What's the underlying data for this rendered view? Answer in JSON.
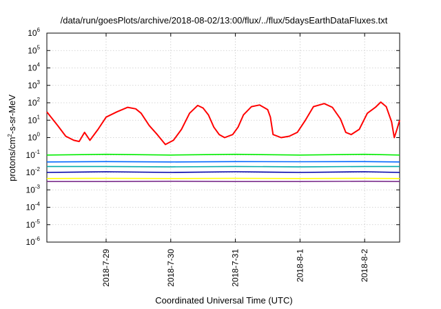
{
  "chart_data": {
    "type": "line",
    "title": "/data/run/goesPlots/archive/2018-08-02/13:00/flux/../flux/5daysEarthDataFluxes.txt",
    "xlabel": "Coordinated Universal Time (UTC)",
    "ylabel_parts": {
      "base": "protons/cm",
      "sup": "2",
      "rest": "-s-sr-MeV"
    },
    "yscale": "log",
    "ylim_exp": [
      -6,
      6
    ],
    "y_ticks": [
      {
        "base": "10",
        "exp": "6"
      },
      {
        "base": "10",
        "exp": "5"
      },
      {
        "base": "10",
        "exp": "4"
      },
      {
        "base": "10",
        "exp": "3"
      },
      {
        "base": "10",
        "exp": "2"
      },
      {
        "base": "10",
        "exp": "1"
      },
      {
        "base": "10",
        "exp": "0"
      },
      {
        "base": "10",
        "exp": "-1"
      },
      {
        "base": "10",
        "exp": "-2"
      },
      {
        "base": "10",
        "exp": "-3"
      },
      {
        "base": "10",
        "exp": "-4"
      },
      {
        "base": "10",
        "exp": "-5"
      },
      {
        "base": "10",
        "exp": "-6"
      }
    ],
    "x_range": [
      "2018-07-28T02:00",
      "2018-08-02T13:00"
    ],
    "x_ticks": [
      {
        "label": "2018-7-29",
        "date": "2018-07-29"
      },
      {
        "label": "2018-7-30",
        "date": "2018-07-30"
      },
      {
        "label": "2018-7-31",
        "date": "2018-07-31"
      },
      {
        "label": "2018-8-1",
        "date": "2018-08-01"
      },
      {
        "label": "2018-8-2",
        "date": "2018-08-02"
      }
    ],
    "series": [
      {
        "color": "#7b2d8b",
        "points": [
          [
            "2018-07-28T02:00",
            0.003
          ],
          [
            "2018-07-29T00:00",
            0.003
          ],
          [
            "2018-07-30T00:00",
            0.0031
          ],
          [
            "2018-07-31T00:00",
            0.003
          ],
          [
            "2018-08-01T00:00",
            0.003
          ],
          [
            "2018-08-02T00:00",
            0.0031
          ],
          [
            "2018-08-02T13:00",
            0.003
          ]
        ]
      },
      {
        "color": "#ffff00",
        "points": [
          [
            "2018-07-28T02:00",
            0.0045
          ],
          [
            "2018-07-29T00:00",
            0.0046
          ],
          [
            "2018-07-30T00:00",
            0.0045
          ],
          [
            "2018-07-31T00:00",
            0.0046
          ],
          [
            "2018-08-01T00:00",
            0.0045
          ],
          [
            "2018-08-02T00:00",
            0.0046
          ],
          [
            "2018-08-02T13:00",
            0.0045
          ]
        ]
      },
      {
        "color": "#0000aa",
        "points": [
          [
            "2018-07-28T02:00",
            0.01
          ],
          [
            "2018-07-29T00:00",
            0.011
          ],
          [
            "2018-07-30T00:00",
            0.01
          ],
          [
            "2018-07-31T00:00",
            0.011
          ],
          [
            "2018-08-01T00:00",
            0.01
          ],
          [
            "2018-08-02T00:00",
            0.011
          ],
          [
            "2018-08-02T13:00",
            0.01
          ]
        ]
      },
      {
        "color": "#00aaaa",
        "points": [
          [
            "2018-07-28T02:00",
            0.022
          ],
          [
            "2018-07-29T00:00",
            0.022
          ],
          [
            "2018-07-30T00:00",
            0.021
          ],
          [
            "2018-07-31T00:00",
            0.022
          ],
          [
            "2018-08-01T00:00",
            0.021
          ],
          [
            "2018-08-02T00:00",
            0.022
          ],
          [
            "2018-08-02T13:00",
            0.022
          ]
        ]
      },
      {
        "color": "#0066ff",
        "points": [
          [
            "2018-07-28T02:00",
            0.04
          ],
          [
            "2018-07-29T00:00",
            0.042
          ],
          [
            "2018-07-30T00:00",
            0.04
          ],
          [
            "2018-07-31T00:00",
            0.042
          ],
          [
            "2018-08-01T00:00",
            0.041
          ],
          [
            "2018-08-02T00:00",
            0.042
          ],
          [
            "2018-08-02T13:00",
            0.04
          ]
        ]
      },
      {
        "color": "#00ee00",
        "points": [
          [
            "2018-07-28T02:00",
            0.1
          ],
          [
            "2018-07-29T00:00",
            0.11
          ],
          [
            "2018-07-30T00:00",
            0.1
          ],
          [
            "2018-07-31T00:00",
            0.11
          ],
          [
            "2018-08-01T00:00",
            0.1
          ],
          [
            "2018-08-02T00:00",
            0.11
          ],
          [
            "2018-08-02T13:00",
            0.1
          ]
        ]
      },
      {
        "color": "#ff0000",
        "points": [
          [
            "2018-07-28T02:00",
            30
          ],
          [
            "2018-07-28T06:00",
            5
          ],
          [
            "2018-07-28T09:00",
            1.2
          ],
          [
            "2018-07-28T12:00",
            0.7
          ],
          [
            "2018-07-28T14:00",
            0.6
          ],
          [
            "2018-07-28T16:00",
            2.0
          ],
          [
            "2018-07-28T18:00",
            0.7
          ],
          [
            "2018-07-28T21:00",
            3
          ],
          [
            "2018-07-29T00:00",
            15
          ],
          [
            "2018-07-29T04:00",
            30
          ],
          [
            "2018-07-29T08:00",
            55
          ],
          [
            "2018-07-29T11:00",
            45
          ],
          [
            "2018-07-29T13:00",
            25
          ],
          [
            "2018-07-29T16:00",
            5
          ],
          [
            "2018-07-29T19:00",
            1.5
          ],
          [
            "2018-07-29T22:00",
            0.4
          ],
          [
            "2018-07-30T01:00",
            0.7
          ],
          [
            "2018-07-30T04:00",
            3
          ],
          [
            "2018-07-30T07:00",
            25
          ],
          [
            "2018-07-30T10:00",
            70
          ],
          [
            "2018-07-30T12:00",
            50
          ],
          [
            "2018-07-30T14:00",
            20
          ],
          [
            "2018-07-30T16:00",
            4
          ],
          [
            "2018-07-30T18:00",
            1.5
          ],
          [
            "2018-07-30T20:00",
            1.0
          ],
          [
            "2018-07-30T23:00",
            1.5
          ],
          [
            "2018-07-31T01:00",
            4
          ],
          [
            "2018-07-31T03:00",
            20
          ],
          [
            "2018-07-31T06:00",
            60
          ],
          [
            "2018-07-31T09:00",
            75
          ],
          [
            "2018-07-31T12:00",
            40
          ],
          [
            "2018-07-31T13:00",
            15
          ],
          [
            "2018-07-31T14:00",
            1.5
          ],
          [
            "2018-07-31T17:00",
            1.0
          ],
          [
            "2018-07-31T20:00",
            1.2
          ],
          [
            "2018-07-31T23:00",
            2
          ],
          [
            "2018-08-01T02:00",
            10
          ],
          [
            "2018-08-01T05:00",
            60
          ],
          [
            "2018-08-01T09:00",
            90
          ],
          [
            "2018-08-01T12:00",
            55
          ],
          [
            "2018-08-01T15:00",
            12
          ],
          [
            "2018-08-01T17:00",
            2
          ],
          [
            "2018-08-01T19:00",
            1.5
          ],
          [
            "2018-08-01T22:00",
            3
          ],
          [
            "2018-08-02T01:00",
            25
          ],
          [
            "2018-08-02T04:00",
            55
          ],
          [
            "2018-08-02T06:00",
            110
          ],
          [
            "2018-08-02T08:00",
            60
          ],
          [
            "2018-08-02T10:00",
            8
          ],
          [
            "2018-08-02T11:00",
            1.0
          ],
          [
            "2018-08-02T12:00",
            3
          ],
          [
            "2018-08-02T13:00",
            10
          ]
        ]
      }
    ]
  }
}
